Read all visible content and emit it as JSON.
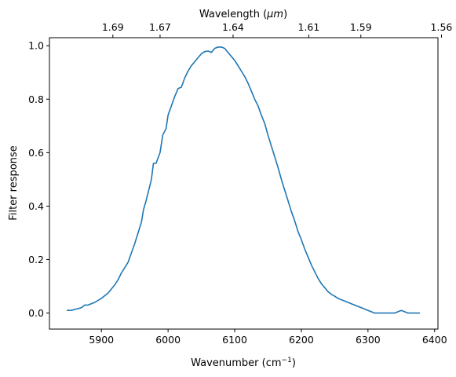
{
  "chart_data": {
    "type": "line",
    "xlabel": "Wavenumber (cm",
    "xlabel_sup": "−1",
    "xlabel_suffix": ")",
    "ylabel": "Filter response",
    "top_xlabel": "Wavelength (",
    "top_xlabel_unit": "μm",
    "top_xlabel_suffix": ")",
    "xlim": [
      5822,
      6405
    ],
    "ylim": [
      -0.06,
      1.03
    ],
    "x_ticks": [
      5900,
      6000,
      6100,
      6200,
      6300,
      6400
    ],
    "x_tick_labels": [
      "5900",
      "6000",
      "6100",
      "6200",
      "6300",
      "6400"
    ],
    "y_ticks": [
      0.0,
      0.2,
      0.4,
      0.6,
      0.8,
      1.0
    ],
    "y_tick_labels": [
      "0.0",
      "0.2",
      "0.4",
      "0.6",
      "0.8",
      "1.0"
    ],
    "top_ticks_wavelength_um": [
      1.69,
      1.67,
      1.64,
      1.61,
      1.59,
      1.56
    ],
    "top_tick_labels": [
      "1.69",
      "1.67",
      "1.64",
      "1.61",
      "1.59",
      "1.56"
    ],
    "grid": false,
    "color": "#1f77b4",
    "series": [
      {
        "x": [
          5848,
          5855,
          5862,
          5870,
          5875,
          5880,
          5890,
          5900,
          5910,
          5915,
          5920,
          5925,
          5930,
          5940,
          5945,
          5950,
          5955,
          5960,
          5963,
          5967,
          5972,
          5975,
          5978,
          5982,
          5988,
          5992,
          5997,
          6000,
          6005,
          6010,
          6015,
          6020,
          6025,
          6030,
          6035,
          6040,
          6045,
          6050,
          6055,
          6060,
          6065,
          6070,
          6075,
          6080,
          6085,
          6090,
          6095,
          6100,
          6105,
          6110,
          6115,
          6120,
          6125,
          6130,
          6135,
          6140,
          6145,
          6150,
          6155,
          6160,
          6165,
          6170,
          6175,
          6180,
          6185,
          6190,
          6195,
          6200,
          6205,
          6210,
          6215,
          6220,
          6225,
          6230,
          6235,
          6240,
          6245,
          6250,
          6255,
          6260,
          6265,
          6270,
          6275,
          6280,
          6285,
          6290,
          6295,
          6300,
          6305,
          6310,
          6315,
          6320,
          6325,
          6330,
          6335,
          6340,
          6345,
          6350,
          6355,
          6360,
          6363,
          6366,
          6370,
          6378
        ],
        "y": [
          0.01,
          0.01,
          0.015,
          0.02,
          0.03,
          0.03,
          0.04,
          0.055,
          0.075,
          0.09,
          0.105,
          0.125,
          0.15,
          0.19,
          0.225,
          0.26,
          0.3,
          0.34,
          0.385,
          0.42,
          0.47,
          0.5,
          0.56,
          0.56,
          0.6,
          0.665,
          0.69,
          0.74,
          0.775,
          0.81,
          0.84,
          0.845,
          0.88,
          0.905,
          0.925,
          0.94,
          0.955,
          0.97,
          0.978,
          0.98,
          0.975,
          0.99,
          0.995,
          0.995,
          0.99,
          0.975,
          0.96,
          0.945,
          0.925,
          0.905,
          0.885,
          0.86,
          0.83,
          0.8,
          0.775,
          0.74,
          0.71,
          0.665,
          0.625,
          0.585,
          0.545,
          0.5,
          0.46,
          0.42,
          0.38,
          0.345,
          0.305,
          0.275,
          0.24,
          0.21,
          0.18,
          0.155,
          0.13,
          0.11,
          0.095,
          0.08,
          0.07,
          0.063,
          0.055,
          0.05,
          0.045,
          0.04,
          0.035,
          0.03,
          0.025,
          0.02,
          0.015,
          0.01,
          0.005,
          0.0,
          0.0,
          0.0,
          0.0,
          0.0,
          0.0,
          0.0,
          0.005,
          0.01,
          0.005,
          0.0,
          0.0,
          0.0,
          0.0,
          0.0
        ]
      }
    ]
  }
}
